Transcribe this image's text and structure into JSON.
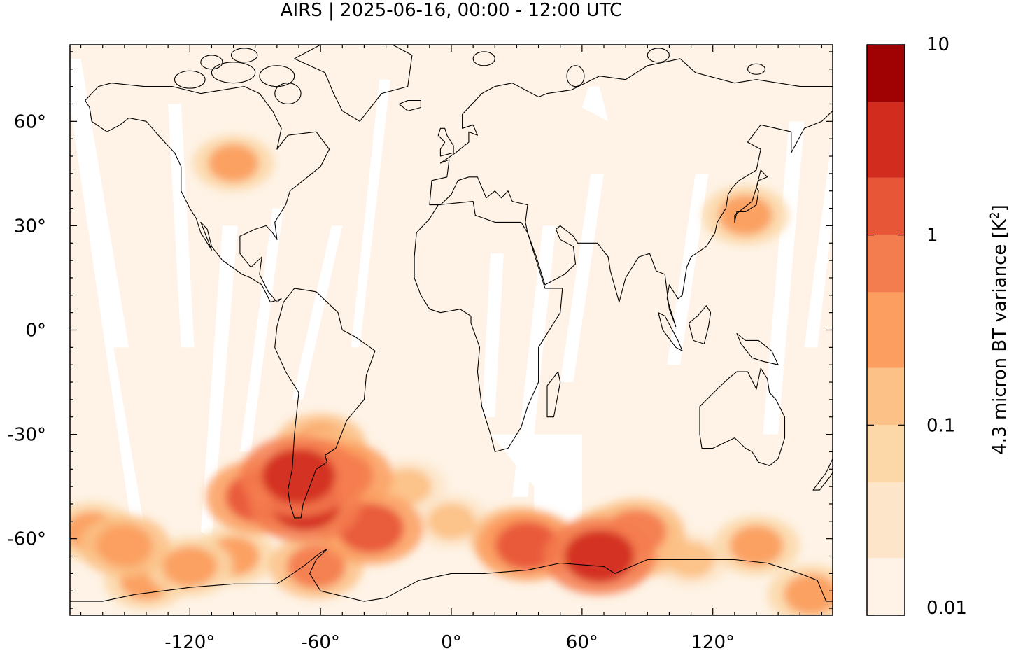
{
  "chart_data": {
    "type": "heatmap",
    "title": "AIRS | 2025-06-16, 00:00 - 12:00 UTC",
    "projection": "equirectangular",
    "xlim": [
      -175,
      175
    ],
    "ylim": [
      -82,
      82
    ],
    "x_ticks": [
      {
        "value": -120,
        "label": "-120°"
      },
      {
        "value": -60,
        "label": "-60°"
      },
      {
        "value": 0,
        "label": "0°"
      },
      {
        "value": 60,
        "label": "60°"
      },
      {
        "value": 120,
        "label": "120°"
      }
    ],
    "y_ticks": [
      {
        "value": 60,
        "label": "60°"
      },
      {
        "value": 30,
        "label": "30°"
      },
      {
        "value": 0,
        "label": "0°"
      },
      {
        "value": -30,
        "label": "-30°"
      },
      {
        "value": -60,
        "label": "-60°"
      }
    ],
    "colorbar": {
      "label": "4.3 micron BT variance [K",
      "label_superscript": "2",
      "label_suffix": "]",
      "scale": "log",
      "range": [
        0.01,
        10
      ],
      "tick_labels": [
        {
          "value": 10,
          "label": "10"
        },
        {
          "value": 1,
          "label": "1"
        },
        {
          "value": 0.1,
          "label": "0.1"
        },
        {
          "value": 0.01,
          "label": "0.01"
        }
      ],
      "levels": [
        {
          "from": 0.01,
          "to": 0.02,
          "color": "#fef3e6"
        },
        {
          "from": 0.02,
          "to": 0.05,
          "color": "#fde5c9"
        },
        {
          "from": 0.05,
          "to": 0.1,
          "color": "#fcd7a8"
        },
        {
          "from": 0.1,
          "to": 0.2,
          "color": "#fcc186"
        },
        {
          "from": 0.2,
          "to": 0.5,
          "color": "#fb9e5f"
        },
        {
          "from": 0.5,
          "to": 1,
          "color": "#f47d4f"
        },
        {
          "from": 1,
          "to": 2,
          "color": "#e85638"
        },
        {
          "from": 2,
          "to": 5,
          "color": "#d22c1f"
        },
        {
          "from": 5,
          "to": 10,
          "color": "#a00203"
        }
      ]
    },
    "hotspots": [
      {
        "lon": -70,
        "lat": -42,
        "value": 3.0
      },
      {
        "lon": -67,
        "lat": -50,
        "value": 2.0
      },
      {
        "lon": -88,
        "lat": -48,
        "value": 1.5
      },
      {
        "lon": -50,
        "lat": -42,
        "value": 0.8
      },
      {
        "lon": -58,
        "lat": -38,
        "value": 0.6
      },
      {
        "lon": -60,
        "lat": -33,
        "value": 0.4
      },
      {
        "lon": -62,
        "lat": -68,
        "value": 0.5
      },
      {
        "lon": -37,
        "lat": -57,
        "value": 1.2
      },
      {
        "lon": 35,
        "lat": -62,
        "value": 1.0
      },
      {
        "lon": 30,
        "lat": -60,
        "value": 0.5
      },
      {
        "lon": 68,
        "lat": -65,
        "value": 2.0
      },
      {
        "lon": 75,
        "lat": -60,
        "value": 0.6
      },
      {
        "lon": 85,
        "lat": -58,
        "value": 0.6
      },
      {
        "lon": 88,
        "lat": -62,
        "value": 0.4
      },
      {
        "lon": -100,
        "lat": 48,
        "value": 0.2
      },
      {
        "lon": -150,
        "lat": -62,
        "value": 0.4
      },
      {
        "lon": -165,
        "lat": -58,
        "value": 0.3
      },
      {
        "lon": -120,
        "lat": -68,
        "value": 0.3
      },
      {
        "lon": -100,
        "lat": -65,
        "value": 0.25
      },
      {
        "lon": -140,
        "lat": -72,
        "value": 0.25
      },
      {
        "lon": 140,
        "lat": -62,
        "value": 0.3
      },
      {
        "lon": 165,
        "lat": -76,
        "value": 0.3
      },
      {
        "lon": 135,
        "lat": 33,
        "value": 0.3
      },
      {
        "lon": 0,
        "lat": -55,
        "value": 0.15
      },
      {
        "lon": 110,
        "lat": -66,
        "value": 0.15
      },
      {
        "lon": -20,
        "lat": -45,
        "value": 0.15
      }
    ]
  }
}
